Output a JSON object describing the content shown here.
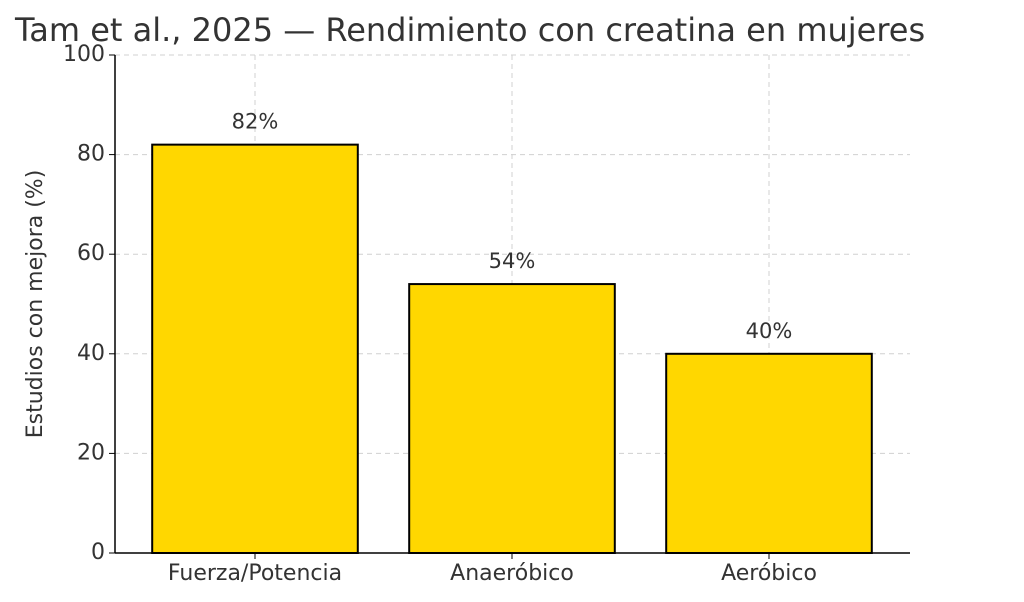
{
  "chart_data": {
    "type": "bar",
    "title": "Tam et al., 2025 — Rendimiento con creatina en mujeres",
    "y_label": "Estudios con mejora (%)",
    "categories": [
      "Fuerza/Potencia",
      "Anaeróbico",
      "Aeróbico"
    ],
    "values": [
      82,
      54,
      40
    ],
    "value_labels": [
      "82%",
      "54%",
      "40%"
    ],
    "color": "#FFD700",
    "edgecolor": "#000000",
    "ylim": [
      0,
      100
    ],
    "yticks": [
      0,
      20,
      40,
      60,
      80,
      100
    ],
    "grid": true
  }
}
